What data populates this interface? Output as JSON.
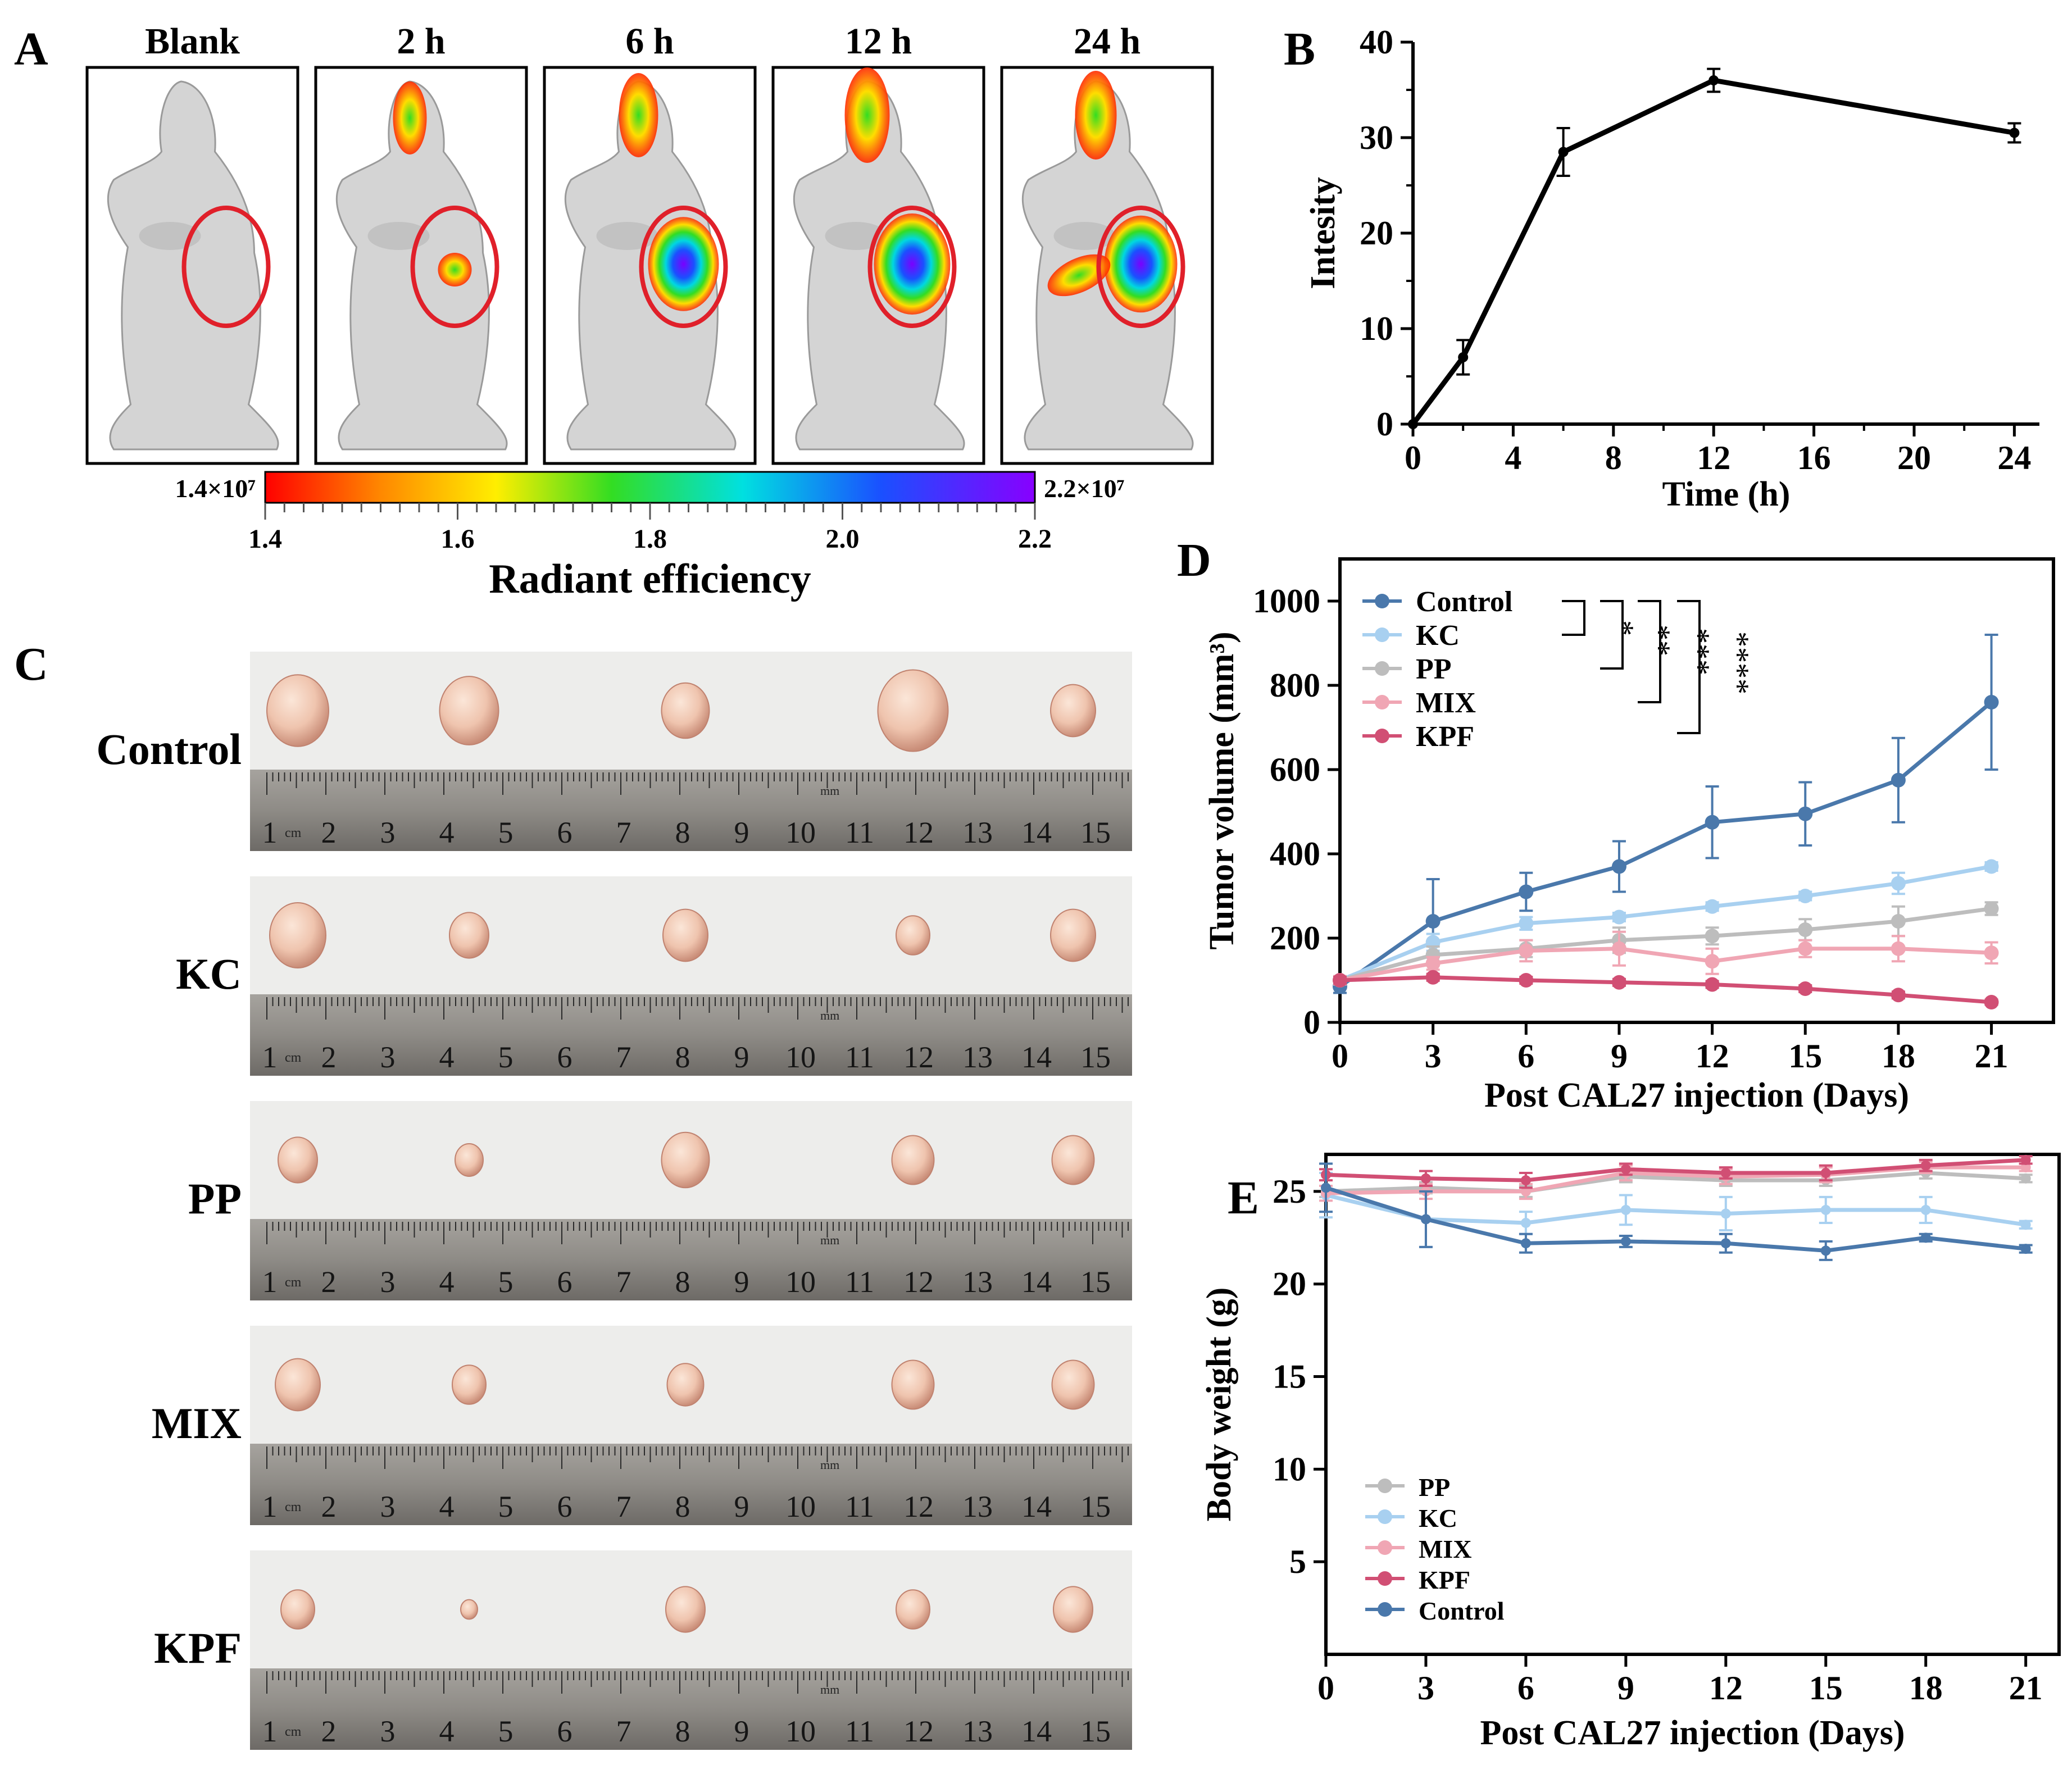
{
  "panel_letters": {
    "a": "A",
    "b": "B",
    "c": "C",
    "d": "D",
    "e": "E"
  },
  "panel_a": {
    "timepoints": [
      "Blank",
      "2 h",
      "6 h",
      "12 h",
      "24 h"
    ],
    "signal_levels": [
      0,
      0.2,
      0.75,
      1.0,
      0.85
    ],
    "colorbar": {
      "min_label": "1.4×10⁷",
      "max_label": "2.2×10⁷",
      "ticks": [
        "1.4",
        "1.6",
        "1.8",
        "2.0",
        "2.2"
      ],
      "title": "Radiant efficiency"
    },
    "ring_color": "#e0202a"
  },
  "panel_c": {
    "groups": [
      "Control",
      "KC",
      "PP",
      "MIX",
      "KPF"
    ],
    "ruler_numbers": [
      "1",
      "2",
      "3",
      "4",
      "5",
      "6",
      "7",
      "8",
      "9",
      "10",
      "11",
      "12",
      "13",
      "14",
      "15"
    ],
    "ruler_unit_cm": "cm",
    "ruler_unit_mm": "mm",
    "tumor_relative_sizes": [
      [
        1.1,
        1.05,
        0.85,
        1.25,
        0.8
      ],
      [
        1.0,
        0.7,
        0.8,
        0.6,
        0.8
      ],
      [
        0.7,
        0.5,
        0.85,
        0.75,
        0.75
      ],
      [
        0.8,
        0.6,
        0.65,
        0.75,
        0.75
      ],
      [
        0.6,
        0.3,
        0.7,
        0.6,
        0.7
      ]
    ]
  },
  "panel_d_legend_stars": [
    "*",
    "**",
    "***",
    "****"
  ],
  "chart_data": [
    {
      "id": "B",
      "type": "line",
      "title": "",
      "xlabel": "Time (h)",
      "ylabel": "Intesity",
      "xlim": [
        0,
        25
      ],
      "ylim": [
        0,
        40
      ],
      "xticks": [
        0,
        4,
        8,
        12,
        16,
        20,
        24
      ],
      "yticks": [
        0,
        10,
        20,
        30,
        40
      ],
      "series": [
        {
          "name": "Intensity",
          "color": "#000000",
          "x": [
            0,
            2,
            6,
            12,
            24
          ],
          "y": [
            0,
            7,
            28.5,
            36,
            30.5
          ],
          "err": [
            0,
            1.8,
            2.5,
            1.2,
            1.0
          ]
        }
      ]
    },
    {
      "id": "D",
      "type": "line",
      "title": "",
      "xlabel": "Post CAL27 injection (Days)",
      "ylabel": "Tumor volume (mm³)",
      "xlim": [
        0,
        23
      ],
      "ylim": [
        0,
        1100
      ],
      "xticks": [
        0,
        3,
        6,
        9,
        12,
        15,
        18,
        21
      ],
      "yticks": [
        0,
        200,
        400,
        600,
        800,
        1000
      ],
      "legend_position": "top-left",
      "x": [
        0,
        3,
        6,
        9,
        12,
        15,
        18,
        21
      ],
      "series": [
        {
          "name": "Control",
          "color": "#4a78ab",
          "y": [
            85,
            240,
            310,
            370,
            475,
            495,
            575,
            760
          ],
          "err": [
            15,
            100,
            45,
            60,
            85,
            75,
            100,
            160
          ]
        },
        {
          "name": "KC",
          "color": "#a8d0f0",
          "y": [
            100,
            190,
            235,
            250,
            275,
            300,
            330,
            370
          ],
          "err": [
            10,
            20,
            15,
            10,
            10,
            10,
            25,
            10
          ]
        },
        {
          "name": "PP",
          "color": "#bdbdbd",
          "y": [
            100,
            160,
            175,
            195,
            205,
            220,
            240,
            270
          ],
          "err": [
            10,
            20,
            20,
            30,
            20,
            25,
            35,
            15
          ]
        },
        {
          "name": "MIX",
          "color": "#f0a6b4",
          "y": [
            100,
            140,
            170,
            175,
            145,
            175,
            175,
            165
          ],
          "err": [
            10,
            15,
            25,
            40,
            30,
            20,
            30,
            25
          ]
        },
        {
          "name": "KPF",
          "color": "#d14f74",
          "y": [
            100,
            107,
            100,
            95,
            90,
            80,
            65,
            48
          ],
          "err": [
            8,
            8,
            8,
            8,
            8,
            8,
            8,
            6
          ]
        }
      ]
    },
    {
      "id": "E",
      "type": "line",
      "title": "",
      "xlabel": "Post CAL27 injection (Days)",
      "ylabel": "Body weight (g)",
      "xlim": [
        0,
        22
      ],
      "ylim": [
        0,
        27
      ],
      "xticks": [
        0,
        3,
        6,
        9,
        12,
        15,
        18,
        21
      ],
      "yticks": [
        5,
        10,
        15,
        20,
        25
      ],
      "legend_position": "bottom-left",
      "x": [
        0,
        3,
        6,
        9,
        12,
        15,
        18,
        21
      ],
      "series": [
        {
          "name": "PP",
          "color": "#bdbdbd",
          "y": [
            25.0,
            25.2,
            25.0,
            25.8,
            25.6,
            25.6,
            26.0,
            25.7
          ],
          "err": [
            0.3,
            0.3,
            0.3,
            0.3,
            0.3,
            0.3,
            0.3,
            0.2
          ]
        },
        {
          "name": "KC",
          "color": "#a8d0f0",
          "y": [
            24.8,
            23.5,
            23.3,
            24.0,
            23.8,
            24.0,
            24.0,
            23.2
          ],
          "err": [
            1.2,
            1.5,
            0.6,
            0.8,
            0.9,
            0.7,
            0.7,
            0.2
          ]
        },
        {
          "name": "MIX",
          "color": "#f0a6b4",
          "y": [
            24.9,
            25.0,
            25.0,
            26.0,
            25.8,
            25.9,
            26.3,
            26.3
          ],
          "err": [
            0.4,
            0.4,
            0.4,
            0.4,
            0.4,
            0.4,
            0.3,
            0.2
          ]
        },
        {
          "name": "KPF",
          "color": "#d14f74",
          "y": [
            25.9,
            25.7,
            25.6,
            26.2,
            26.0,
            26.0,
            26.4,
            26.7
          ],
          "err": [
            0.3,
            0.4,
            0.4,
            0.3,
            0.3,
            0.4,
            0.3,
            0.2
          ]
        },
        {
          "name": "Control",
          "color": "#4a78ab",
          "y": [
            25.2,
            23.5,
            22.2,
            22.3,
            22.2,
            21.8,
            22.5,
            21.9
          ],
          "err": [
            1.3,
            1.5,
            0.5,
            0.3,
            0.5,
            0.5,
            0.2,
            0.2
          ]
        }
      ]
    }
  ]
}
